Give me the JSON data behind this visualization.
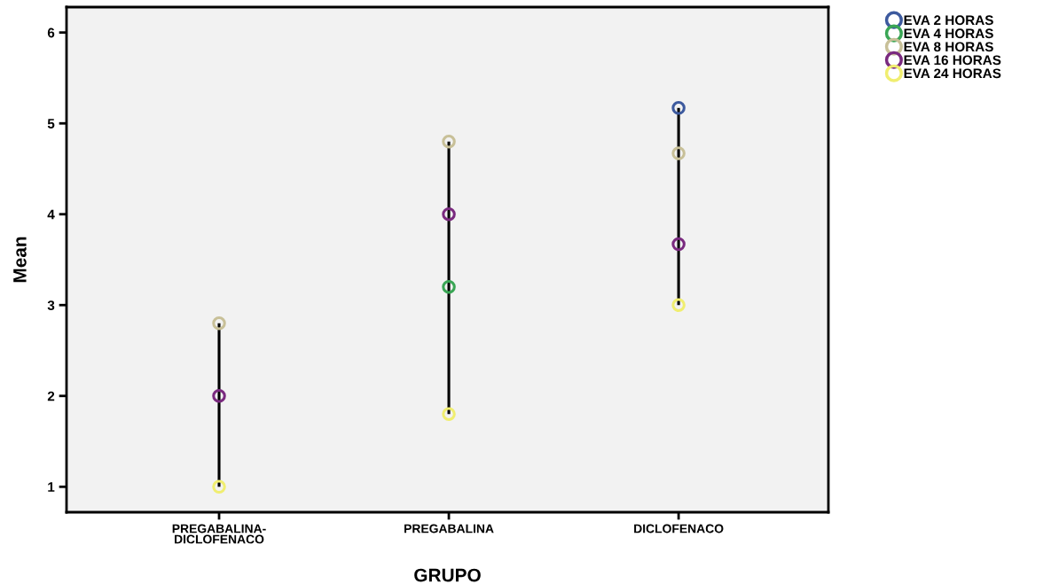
{
  "chart_data": {
    "type": "scatter",
    "xlabel": "GRUPO",
    "ylabel": "Mean",
    "categories": [
      "PREGABALINA-\nDICLOFENACO",
      "PREGABALINA",
      "DICLOFENACO"
    ],
    "ylim": [
      0.72,
      6.28
    ],
    "yticks": [
      1,
      2,
      3,
      4,
      5,
      6
    ],
    "grid": false,
    "legend": "top right",
    "marker": "circle",
    "series": [
      {
        "type": "bar",
        "color": "#000000",
        "base": [
          1.0,
          1.8,
          3.0
        ],
        "values": [
          1.8,
          3.0,
          2.17
        ]
      },
      {
        "name": "EVA 2 HORAS",
        "color": "#3d5a9e",
        "values": [
          null,
          null,
          5.17
        ]
      },
      {
        "name": "EVA 4 HORAS",
        "color": "#3aa655",
        "values": [
          null,
          3.2,
          null
        ]
      },
      {
        "name": "EVA 8 HORAS",
        "color": "#c8c098",
        "values": [
          2.8,
          4.8,
          4.67
        ]
      },
      {
        "name": "EVA 16 HORAS",
        "color": "#7a2a7f",
        "values": [
          2.0,
          4.0,
          3.67
        ]
      },
      {
        "name": "EVA 24 HORAS",
        "color": "#f0ee70",
        "values": [
          1.0,
          1.8,
          3.0
        ]
      }
    ]
  }
}
